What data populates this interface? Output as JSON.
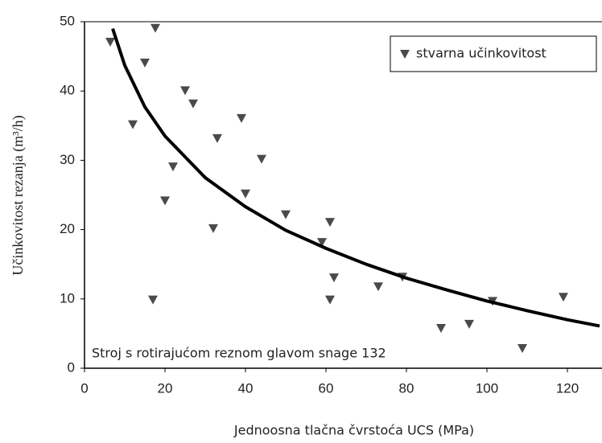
{
  "chart_data": {
    "type": "scatter",
    "xlabel": "Jednoosna tlačna čvrstoća UCS (MPa)",
    "ylabel": "Učinkovitost rezanja (m³/h)",
    "annotation": "Stroj s rotirajućom reznom glavom snage 132",
    "xlim": [
      0,
      128
    ],
    "ylim": [
      0,
      50
    ],
    "xticks": [
      0,
      20,
      40,
      60,
      80,
      100,
      120
    ],
    "yticks": [
      0,
      10,
      20,
      30,
      40,
      50
    ],
    "legend": "upper right",
    "series": [
      {
        "name": "stvarna učinkovitost",
        "type": "scatter",
        "color": "#4a4a4a",
        "x": [
          6.4,
          17.6,
          15,
          25,
          27,
          12,
          39,
          33,
          44,
          22,
          40,
          20,
          50,
          61,
          32,
          59,
          62,
          73,
          79,
          61,
          17,
          101.4,
          119,
          88.6,
          95.6,
          108.8
        ],
        "values": [
          47.1,
          49.1,
          44.1,
          40.1,
          38.2,
          35.2,
          36.1,
          33.2,
          30.2,
          29.1,
          25.2,
          24.2,
          22.2,
          21.1,
          20.2,
          18.2,
          13.1,
          11.8,
          13.2,
          9.9,
          9.9,
          9.7,
          10.3,
          5.8,
          6.4,
          2.9
        ]
      },
      {
        "type": "line",
        "color": "#000000",
        "x": [
          7,
          10,
          15,
          20,
          30,
          40,
          50,
          60,
          70,
          80,
          90,
          100,
          110,
          120,
          128
        ],
        "values": [
          49.0,
          43.7,
          37.7,
          33.5,
          27.5,
          23.3,
          19.9,
          17.3,
          15.0,
          13.0,
          11.3,
          9.7,
          8.3,
          7.0,
          6.1
        ]
      }
    ]
  }
}
